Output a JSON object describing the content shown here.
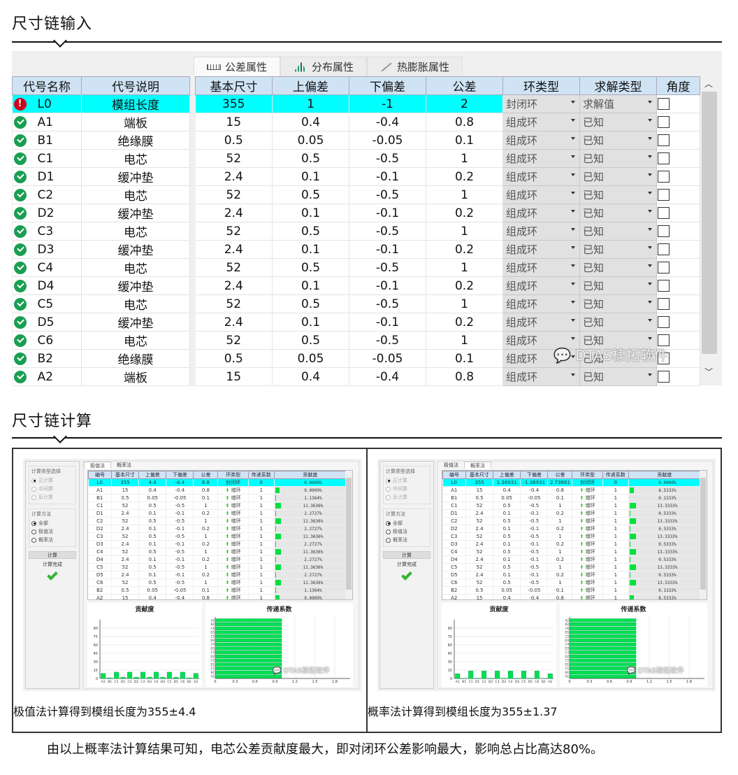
{
  "sections": {
    "input_title": "尺寸链输入",
    "calc_title": "尺寸链计算"
  },
  "input_panel": {
    "tabs": [
      {
        "label": "公差属性",
        "icon": "ruler-icon",
        "active": true
      },
      {
        "label": "分布属性",
        "icon": "histogram-icon",
        "active": false
      },
      {
        "label": "热膨胀属性",
        "icon": "pen-icon",
        "active": false
      }
    ],
    "columns": [
      "代号名称",
      "代号说明",
      "基本尺寸",
      "上偏差",
      "下偏差",
      "公差",
      "环类型",
      "求解类型",
      "角度"
    ],
    "rows": [
      {
        "status": "error",
        "code": "L0",
        "desc": "模组长度",
        "basic": "355",
        "upper": "1",
        "lower": "-1",
        "tol": "2",
        "ring": "封闭环",
        "solve": "求解值",
        "angle": false
      },
      {
        "status": "ok",
        "code": "A1",
        "desc": "端板",
        "basic": "15",
        "upper": "0.4",
        "lower": "-0.4",
        "tol": "0.8",
        "ring": "组成环",
        "solve": "已知",
        "angle": false
      },
      {
        "status": "ok",
        "code": "B1",
        "desc": "绝缘膜",
        "basic": "0.5",
        "upper": "0.05",
        "lower": "-0.05",
        "tol": "0.1",
        "ring": "组成环",
        "solve": "已知",
        "angle": false
      },
      {
        "status": "ok",
        "code": "C1",
        "desc": "电芯",
        "basic": "52",
        "upper": "0.5",
        "lower": "-0.5",
        "tol": "1",
        "ring": "组成环",
        "solve": "已知",
        "angle": false
      },
      {
        "status": "ok",
        "code": "D1",
        "desc": "缓冲垫",
        "basic": "2.4",
        "upper": "0.1",
        "lower": "-0.1",
        "tol": "0.2",
        "ring": "组成环",
        "solve": "已知",
        "angle": false
      },
      {
        "status": "ok",
        "code": "C2",
        "desc": "电芯",
        "basic": "52",
        "upper": "0.5",
        "lower": "-0.5",
        "tol": "1",
        "ring": "组成环",
        "solve": "已知",
        "angle": false
      },
      {
        "status": "ok",
        "code": "D2",
        "desc": "缓冲垫",
        "basic": "2.4",
        "upper": "0.1",
        "lower": "-0.1",
        "tol": "0.2",
        "ring": "组成环",
        "solve": "已知",
        "angle": false
      },
      {
        "status": "ok",
        "code": "C3",
        "desc": "电芯",
        "basic": "52",
        "upper": "0.5",
        "lower": "-0.5",
        "tol": "1",
        "ring": "组成环",
        "solve": "已知",
        "angle": false
      },
      {
        "status": "ok",
        "code": "D3",
        "desc": "缓冲垫",
        "basic": "2.4",
        "upper": "0.1",
        "lower": "-0.1",
        "tol": "0.2",
        "ring": "组成环",
        "solve": "已知",
        "angle": false
      },
      {
        "status": "ok",
        "code": "C4",
        "desc": "电芯",
        "basic": "52",
        "upper": "0.5",
        "lower": "-0.5",
        "tol": "1",
        "ring": "组成环",
        "solve": "已知",
        "angle": false
      },
      {
        "status": "ok",
        "code": "D4",
        "desc": "缓冲垫",
        "basic": "2.4",
        "upper": "0.1",
        "lower": "-0.1",
        "tol": "0.2",
        "ring": "组成环",
        "solve": "已知",
        "angle": false
      },
      {
        "status": "ok",
        "code": "C5",
        "desc": "电芯",
        "basic": "52",
        "upper": "0.5",
        "lower": "-0.5",
        "tol": "1",
        "ring": "组成环",
        "solve": "已知",
        "angle": false
      },
      {
        "status": "ok",
        "code": "D5",
        "desc": "缓冲垫",
        "basic": "2.4",
        "upper": "0.1",
        "lower": "-0.1",
        "tol": "0.2",
        "ring": "组成环",
        "solve": "已知",
        "angle": false
      },
      {
        "status": "ok",
        "code": "C6",
        "desc": "电芯",
        "basic": "52",
        "upper": "0.5",
        "lower": "-0.5",
        "tol": "1",
        "ring": "组成环",
        "solve": "已知",
        "angle": false
      },
      {
        "status": "ok",
        "code": "B2",
        "desc": "绝缘膜",
        "basic": "0.5",
        "upper": "0.05",
        "lower": "-0.05",
        "tol": "0.1",
        "ring": "组成环",
        "solve": "已知",
        "angle": false
      },
      {
        "status": "ok",
        "code": "A2",
        "desc": "端板",
        "basic": "15",
        "upper": "0.4",
        "lower": "-0.4",
        "tol": "0.8",
        "ring": "组成环",
        "solve": "已知",
        "angle": false
      }
    ],
    "watermark": "DTAS棣拓软件"
  },
  "calc_common": {
    "calc_type_group": "计算类型选择",
    "calc_types": [
      "正计算",
      "中间算",
      "反计算"
    ],
    "method_group": "计算方法",
    "methods": [
      "全部",
      "极值法",
      "概率法"
    ],
    "calc_button": "计算",
    "calc_status": "计算完成",
    "tabs": [
      "极值法",
      "概率法"
    ],
    "columns": [
      "编号",
      "基本尺寸",
      "上偏差",
      "下偏差",
      "公差",
      "环类型",
      "传递系数",
      "贡献度"
    ],
    "chart1_title": "贡献度",
    "chart2_title": "传递系数",
    "watermark": "DTAS棣拓软件"
  },
  "calc_extreme": {
    "active_tab": "极值法",
    "rows": [
      [
        "L0",
        "355",
        "4.4",
        "-4.4",
        "8.8",
        "封闭环",
        "0",
        "0.0000%"
      ],
      [
        "A1",
        "15",
        "0.4",
        "-0.4",
        "0.8",
        "增环",
        "1",
        "9.0909%"
      ],
      [
        "B1",
        "0.5",
        "0.05",
        "-0.05",
        "0.1",
        "增环",
        "1",
        "1.1364%"
      ],
      [
        "C1",
        "52",
        "0.5",
        "-0.5",
        "1",
        "增环",
        "1",
        "11.3636%"
      ],
      [
        "D1",
        "2.4",
        "0.1",
        "-0.1",
        "0.2",
        "增环",
        "1",
        "2.2727%"
      ],
      [
        "C2",
        "52",
        "0.5",
        "-0.5",
        "1",
        "增环",
        "1",
        "11.3636%"
      ],
      [
        "D2",
        "2.4",
        "0.1",
        "-0.1",
        "0.2",
        "增环",
        "1",
        "2.2727%"
      ],
      [
        "C3",
        "52",
        "0.5",
        "-0.5",
        "1",
        "增环",
        "1",
        "11.3636%"
      ],
      [
        "D3",
        "2.4",
        "0.1",
        "-0.1",
        "0.2",
        "增环",
        "1",
        "2.2727%"
      ],
      [
        "C4",
        "52",
        "0.5",
        "-0.5",
        "1",
        "增环",
        "1",
        "11.3636%"
      ],
      [
        "D4",
        "2.4",
        "0.1",
        "-0.1",
        "0.2",
        "增环",
        "1",
        "2.2727%"
      ],
      [
        "C5",
        "52",
        "0.5",
        "-0.5",
        "1",
        "增环",
        "1",
        "11.3636%"
      ],
      [
        "D5",
        "2.4",
        "0.1",
        "-0.1",
        "0.2",
        "增环",
        "1",
        "2.2727%"
      ],
      [
        "C6",
        "52",
        "0.5",
        "-0.5",
        "1",
        "增环",
        "1",
        "11.3636%"
      ],
      [
        "B2",
        "0.5",
        "0.05",
        "-0.05",
        "0.1",
        "增环",
        "1",
        "1.1364%"
      ],
      [
        "A2",
        "15",
        "0.4",
        "-0.4",
        "0.8",
        "增环",
        "1",
        "9.0909%"
      ]
    ],
    "caption": "极值法计算得到模组长度为355±4.4"
  },
  "calc_prob": {
    "active_tab": "概率法",
    "rows": [
      [
        "L0",
        "355",
        "1.36931",
        "-1.36931",
        "2.73861",
        "封闭环",
        "0",
        "0.0000%"
      ],
      [
        "A1",
        "15",
        "0.4",
        "-0.4",
        "0.8",
        "增环",
        "1",
        "8.5333%"
      ],
      [
        "B1",
        "0.5",
        "0.05",
        "-0.05",
        "0.1",
        "增环",
        "1",
        "0.1333%"
      ],
      [
        "C1",
        "52",
        "0.5",
        "-0.5",
        "1",
        "增环",
        "1",
        "13.3333%"
      ],
      [
        "D1",
        "2.4",
        "0.1",
        "-0.1",
        "0.2",
        "增环",
        "1",
        "0.5333%"
      ],
      [
        "C2",
        "52",
        "0.5",
        "-0.5",
        "1",
        "增环",
        "1",
        "13.3333%"
      ],
      [
        "D2",
        "2.4",
        "0.1",
        "-0.1",
        "0.2",
        "增环",
        "1",
        "0.5333%"
      ],
      [
        "C3",
        "52",
        "0.5",
        "-0.5",
        "1",
        "增环",
        "1",
        "13.3333%"
      ],
      [
        "D3",
        "2.4",
        "0.1",
        "-0.1",
        "0.2",
        "增环",
        "1",
        "0.5333%"
      ],
      [
        "C4",
        "52",
        "0.5",
        "-0.5",
        "1",
        "增环",
        "1",
        "13.3333%"
      ],
      [
        "D4",
        "2.4",
        "0.1",
        "-0.1",
        "0.2",
        "增环",
        "1",
        "0.5333%"
      ],
      [
        "C5",
        "52",
        "0.5",
        "-0.5",
        "1",
        "增环",
        "1",
        "13.3333%"
      ],
      [
        "D5",
        "2.4",
        "0.1",
        "-0.1",
        "0.2",
        "增环",
        "1",
        "0.5333%"
      ],
      [
        "C6",
        "52",
        "0.5",
        "-0.5",
        "1",
        "增环",
        "1",
        "13.3333%"
      ],
      [
        "B2",
        "0.5",
        "0.05",
        "-0.05",
        "0.1",
        "增环",
        "1",
        "0.1333%"
      ],
      [
        "A2",
        "15",
        "0.4",
        "-0.4",
        "0.8",
        "增环",
        "1",
        "8.5333%"
      ]
    ],
    "caption": "概率法计算得到模组长度为355±1.37"
  },
  "chart_data": [
    {
      "type": "bar",
      "title": "贡献度 (极值法)",
      "categories": [
        "A1",
        "B1",
        "C1",
        "D1",
        "C2",
        "D2",
        "C3",
        "D3",
        "C4",
        "D4",
        "C5",
        "D5",
        "C6",
        "B2",
        "A2"
      ],
      "values": [
        9.09,
        1.14,
        11.36,
        2.27,
        11.36,
        2.27,
        11.36,
        2.27,
        11.36,
        2.27,
        11.36,
        2.27,
        11.36,
        1.14,
        9.09
      ],
      "yticks": [
        0,
        15,
        30,
        45,
        60,
        75,
        90
      ],
      "ylim": [
        0,
        100
      ],
      "grid": true
    },
    {
      "type": "bar",
      "orientation": "horizontal",
      "title": "传递系数 (极值法)",
      "categories": [
        "A1",
        "B1",
        "C1",
        "D1",
        "C2",
        "D2",
        "C3",
        "D3",
        "C4",
        "D4",
        "C5",
        "D5",
        "C6",
        "B2",
        "A2"
      ],
      "values": [
        1,
        1,
        1,
        1,
        1,
        1,
        1,
        1,
        1,
        1,
        1,
        1,
        1,
        1,
        1
      ],
      "xticks": [
        0,
        0.3,
        0.6,
        0.9,
        1.2,
        1.5,
        1.8
      ],
      "xlim": [
        0,
        2
      ],
      "grid": true
    },
    {
      "type": "bar",
      "title": "贡献度 (概率法)",
      "categories": [
        "A1",
        "B1",
        "C1",
        "D1",
        "C2",
        "D2",
        "C3",
        "D3",
        "C4",
        "D4",
        "C5",
        "D5",
        "C6",
        "B2",
        "A2"
      ],
      "values": [
        8.53,
        0.13,
        13.33,
        0.53,
        13.33,
        0.53,
        13.33,
        0.53,
        13.33,
        0.53,
        13.33,
        0.53,
        13.33,
        0.13,
        8.53
      ],
      "yticks": [
        0,
        15,
        30,
        45,
        60,
        75,
        90
      ],
      "ylim": [
        0,
        100
      ],
      "grid": true
    },
    {
      "type": "bar",
      "orientation": "horizontal",
      "title": "传递系数 (概率法)",
      "categories": [
        "A1",
        "B1",
        "C1",
        "D1",
        "C2",
        "D2",
        "C3",
        "D3",
        "C4",
        "D4",
        "C5",
        "D5",
        "C6",
        "B2",
        "A2"
      ],
      "values": [
        1,
        1,
        1,
        1,
        1,
        1,
        1,
        1,
        1,
        1,
        1,
        1,
        1,
        1,
        1
      ],
      "xticks": [
        0,
        0.3,
        0.6,
        0.9,
        1.2,
        1.5,
        1.8
      ],
      "xlim": [
        0,
        2
      ],
      "grid": true
    }
  ],
  "conclusion": "由以上概率法计算结果可知，电芯公差贡献度最大，即对闭环公差影响最大，影响总占比高达80%。"
}
